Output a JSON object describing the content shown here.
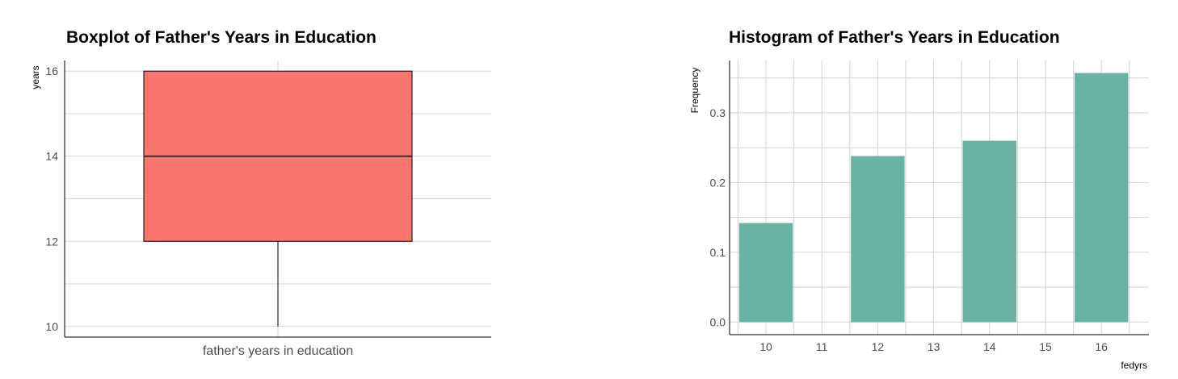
{
  "chart_data": [
    {
      "type": "boxplot",
      "title": "Boxplot of Father's Years in Education",
      "ylabel": "years",
      "category": "father's years in education",
      "stats": {
        "min": 10,
        "q1": 12,
        "median": 14,
        "q3": 16,
        "max": 16
      },
      "ylim": [
        9.75,
        16.25
      ],
      "yticks": [
        10,
        12,
        14,
        16
      ],
      "grid": true,
      "colors": {
        "box": "#F8766D",
        "median": "#333333",
        "grid": "#d3d3d3"
      }
    },
    {
      "type": "bar",
      "title": "Histogram of Father's Years in Education",
      "xlabel": "fedyrs",
      "ylabel": "Frequency",
      "x": [
        10,
        12,
        14,
        16
      ],
      "values": [
        0.142,
        0.238,
        0.26,
        0.357
      ],
      "xticks": [
        10,
        11,
        12,
        13,
        14,
        15,
        16
      ],
      "yticks": [
        0.0,
        0.1,
        0.2,
        0.3
      ],
      "xlim": [
        9.35,
        16.85
      ],
      "ylim": [
        -0.018,
        0.375
      ],
      "grid": true,
      "colors": {
        "bar": "#69b3a2",
        "grid": "#d3d3d3"
      }
    }
  ]
}
